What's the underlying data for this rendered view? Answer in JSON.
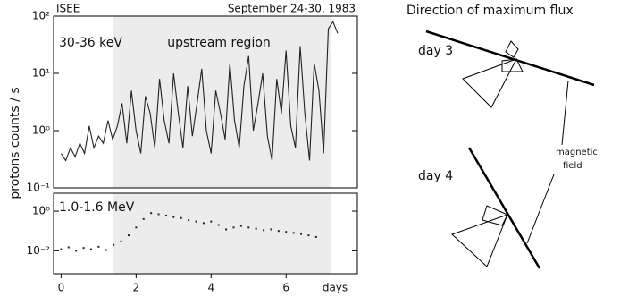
{
  "chart_data": [
    {
      "type": "line",
      "source": "ISEE",
      "title": "September 24-30, 1983",
      "annotations": [
        "30-36 keV",
        "upstream region"
      ],
      "ylabel": "protons counts / s",
      "log_y": true,
      "color": "#222",
      "shade_color": "#ececec",
      "shaded_span": [
        1.4,
        7.2
      ],
      "xlim": [
        -0.2,
        7.9
      ],
      "ylim": [
        0.1,
        100
      ],
      "yticks": [
        {
          "value": 0.1,
          "label": "10⁻¹"
        },
        {
          "value": 1,
          "label": "10⁰"
        },
        {
          "value": 10,
          "label": "10¹"
        },
        {
          "value": 100,
          "label": "10²"
        }
      ],
      "x": [
        0,
        0.125,
        0.25,
        0.375,
        0.5,
        0.625,
        0.75,
        0.875,
        1,
        1.125,
        1.25,
        1.375,
        1.5,
        1.625,
        1.75,
        1.875,
        2,
        2.125,
        2.25,
        2.375,
        2.5,
        2.625,
        2.75,
        2.875,
        3,
        3.125,
        3.25,
        3.375,
        3.5,
        3.625,
        3.75,
        3.875,
        4,
        4.125,
        4.25,
        4.375,
        4.5,
        4.625,
        4.75,
        4.875,
        5,
        5.125,
        5.25,
        5.375,
        5.5,
        5.625,
        5.75,
        5.875,
        6,
        6.125,
        6.25,
        6.375,
        6.5,
        6.625,
        6.75,
        6.875,
        7,
        7.125,
        7.25,
        7.375
      ],
      "values": [
        0.4,
        0.3,
        0.5,
        0.35,
        0.6,
        0.4,
        1.2,
        0.5,
        0.8,
        0.6,
        1.5,
        0.7,
        1.2,
        3,
        0.6,
        5,
        1,
        0.4,
        4,
        2,
        0.5,
        8,
        1.5,
        0.6,
        10,
        2,
        0.5,
        6,
        0.8,
        3,
        12,
        1,
        0.4,
        5,
        2,
        0.7,
        15,
        1.5,
        0.5,
        6,
        20,
        1,
        3,
        10,
        0.8,
        0.3,
        8,
        2,
        25,
        1.2,
        0.5,
        30,
        2,
        0.3,
        15,
        5,
        0.4,
        60,
        80,
        50
      ]
    },
    {
      "type": "scatter",
      "annotations": [
        "1.0-1.6 MeV"
      ],
      "xlabel": "days",
      "log_y": true,
      "color": "#222",
      "shade_color": "#ececec",
      "shaded_span": [
        1.4,
        7.2
      ],
      "xlim": [
        -0.2,
        7.9
      ],
      "ylim": [
        0.0007,
        8
      ],
      "xticks": [
        0,
        2,
        4,
        6
      ],
      "yticks": [
        {
          "value": 0.01,
          "label": "10⁻²"
        },
        {
          "value": 1,
          "label": "10⁰"
        }
      ],
      "x": [
        0,
        0.2,
        0.4,
        0.6,
        0.8,
        1,
        1.2,
        1.4,
        1.6,
        1.8,
        2,
        2.2,
        2.4,
        2.6,
        2.8,
        3,
        3.2,
        3.4,
        3.6,
        3.8,
        4,
        4.2,
        4.4,
        4.6,
        4.8,
        5,
        5.2,
        5.4,
        5.6,
        5.8,
        6,
        6.2,
        6.4,
        6.6,
        6.8
      ],
      "values": [
        0.012,
        0.015,
        0.01,
        0.014,
        0.012,
        0.016,
        0.011,
        0.02,
        0.03,
        0.06,
        0.15,
        0.4,
        0.8,
        0.7,
        0.6,
        0.5,
        0.45,
        0.35,
        0.3,
        0.25,
        0.3,
        0.2,
        0.12,
        0.15,
        0.18,
        0.15,
        0.13,
        0.11,
        0.12,
        0.1,
        0.09,
        0.08,
        0.07,
        0.06,
        0.05
      ]
    }
  ],
  "diagram": {
    "title": "Direction of maximum flux",
    "day_labels": [
      "day 3",
      "day 4"
    ],
    "field_label": [
      "magnetic",
      "field"
    ]
  }
}
